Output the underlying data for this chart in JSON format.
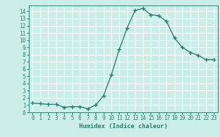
{
  "x": [
    0,
    1,
    2,
    3,
    4,
    5,
    6,
    7,
    8,
    9,
    10,
    11,
    12,
    13,
    14,
    15,
    16,
    17,
    18,
    19,
    20,
    21,
    22,
    23
  ],
  "y": [
    1.3,
    1.2,
    1.1,
    1.1,
    0.7,
    0.8,
    0.8,
    0.5,
    1.0,
    2.3,
    5.2,
    8.7,
    11.7,
    14.1,
    14.4,
    13.5,
    13.4,
    12.6,
    10.3,
    9.0,
    8.3,
    7.9,
    7.3,
    7.3
  ],
  "line_color": "#2e7d6e",
  "bg_color": "#cceee8",
  "grid_color": "#ffffff",
  "xlabel": "Humidex (Indice chaleur)",
  "xlim": [
    -0.5,
    23.5
  ],
  "ylim": [
    0,
    14.8
  ],
  "xticks": [
    0,
    1,
    2,
    3,
    4,
    5,
    6,
    7,
    8,
    9,
    10,
    11,
    12,
    13,
    14,
    15,
    16,
    17,
    18,
    19,
    20,
    21,
    22,
    23
  ],
  "yticks": [
    0,
    1,
    2,
    3,
    4,
    5,
    6,
    7,
    8,
    9,
    10,
    11,
    12,
    13,
    14
  ],
  "marker": "+",
  "markersize": 4,
  "linewidth": 1.0,
  "label_fontsize": 6.5,
  "tick_fontsize": 5.5
}
